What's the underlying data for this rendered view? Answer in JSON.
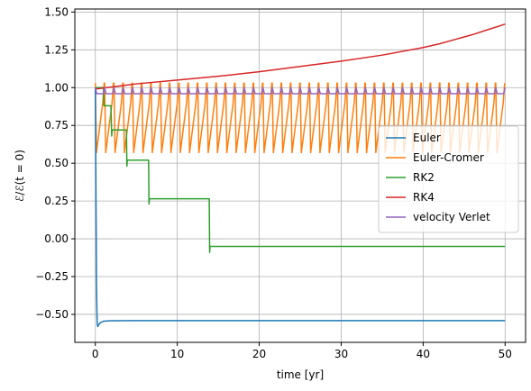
{
  "chart_data": {
    "type": "line",
    "title": "",
    "xlabel": "time [yr]",
    "ylabel": "ℰ/ℰ(t = 0)",
    "xlim": [
      -2.5,
      52.5
    ],
    "ylim": [
      -0.685,
      1.52
    ],
    "grid": true,
    "legend_position": "center-right",
    "x_ticks": [
      0,
      10,
      20,
      30,
      40,
      50
    ],
    "x_tick_labels": [
      "0",
      "10",
      "20",
      "30",
      "40",
      "50"
    ],
    "y_ticks": [
      -0.5,
      -0.25,
      0,
      0.25,
      0.5,
      0.75,
      1.0,
      1.25,
      1.5
    ],
    "y_tick_labels": [
      "−0.50",
      "−0.25",
      "0.00",
      "0.25",
      "0.50",
      "0.75",
      "1.00",
      "1.25",
      "1.50"
    ],
    "series": [
      {
        "name": "Euler",
        "color": "#1f77b4",
        "x": [
          0,
          0.05,
          0.1,
          0.15,
          0.2,
          0.25,
          0.3,
          0.4,
          0.6,
          1.0,
          2.0,
          5.0,
          10,
          20,
          30,
          40,
          50
        ],
        "y": [
          1.0,
          0.6,
          0.1,
          -0.3,
          -0.5,
          -0.57,
          -0.58,
          -0.57,
          -0.555,
          -0.545,
          -0.542,
          -0.541,
          -0.541,
          -0.541,
          -0.541,
          -0.541,
          -0.541
        ]
      },
      {
        "name": "Euler-Cromer",
        "color": "#ff7f0e",
        "oscillation": {
          "min": 0.57,
          "max": 1.03,
          "count": 44
        }
      },
      {
        "name": "RK2",
        "color": "#2ca02c",
        "x": [
          0,
          0.2,
          1.0,
          1.05,
          1.9,
          2.0,
          2.05,
          3.8,
          3.85,
          3.9,
          6.5,
          6.55,
          6.6,
          13.9,
          13.95,
          14.0,
          50
        ],
        "y": [
          1.0,
          1.0,
          1.0,
          0.88,
          0.88,
          0.68,
          0.72,
          0.72,
          0.48,
          0.52,
          0.52,
          0.23,
          0.265,
          0.265,
          -0.09,
          -0.05,
          -0.05
        ]
      },
      {
        "name": "RK4",
        "color": "#d62728",
        "x": [
          0,
          5,
          10,
          15,
          20,
          25,
          30,
          35,
          40,
          42,
          44,
          46,
          48,
          50
        ],
        "y": [
          0.99,
          1.025,
          1.05,
          1.075,
          1.105,
          1.14,
          1.175,
          1.215,
          1.265,
          1.29,
          1.32,
          1.35,
          1.385,
          1.42
        ]
      },
      {
        "name": "velocity Verlet",
        "color": "#9467bd",
        "oscillation": {
          "min": 0.96,
          "max": 1.0,
          "count": 44
        }
      }
    ]
  }
}
